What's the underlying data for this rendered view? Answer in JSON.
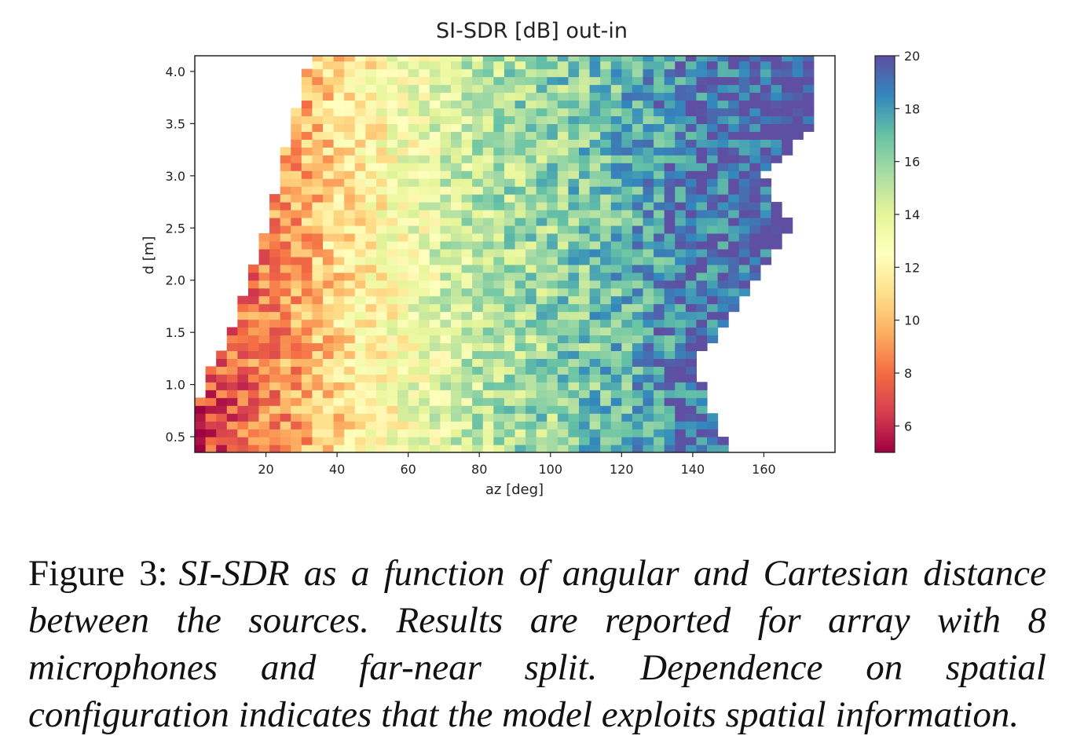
{
  "chart_data": {
    "type": "heatmap",
    "title": "SI-SDR [dB] out-in",
    "xlabel": "az [deg]",
    "ylabel": "d [m]",
    "xlim": [
      0,
      180
    ],
    "ylim": [
      0.35,
      4.15
    ],
    "xticks": [
      20,
      40,
      60,
      80,
      100,
      120,
      140,
      160
    ],
    "yticks": [
      0.5,
      1.0,
      1.5,
      2.0,
      2.5,
      3.0,
      3.5,
      4.0
    ],
    "colorbar": {
      "colormap": "Spectral",
      "range": [
        5,
        20
      ],
      "ticks": [
        6,
        8,
        10,
        12,
        14,
        16,
        18,
        20
      ]
    },
    "grid": false,
    "trend": {
      "description_of_values": "low SI-SDR (~6-9 dB) at small az, rising to ~12 dB near az 50, ~15-16 dB near az 90-110, ~18-20 dB near az 130-170",
      "az_profile": [
        [
          0,
          6.5
        ],
        [
          15,
          8
        ],
        [
          30,
          9.5
        ],
        [
          45,
          11.5
        ],
        [
          60,
          13
        ],
        [
          80,
          15
        ],
        [
          100,
          16
        ],
        [
          120,
          17
        ],
        [
          140,
          19
        ],
        [
          160,
          19.5
        ],
        [
          175,
          20
        ]
      ],
      "data_extent_min_az_by_d": [
        [
          0.4,
          0
        ],
        [
          1.0,
          2
        ],
        [
          1.5,
          10
        ],
        [
          2.0,
          15
        ],
        [
          2.5,
          20
        ],
        [
          3.0,
          24
        ],
        [
          3.5,
          27
        ],
        [
          4.1,
          32
        ]
      ],
      "data_extent_max_az_by_d": [
        [
          0.4,
          150
        ],
        [
          0.8,
          145
        ],
        [
          1.2,
          140
        ],
        [
          1.6,
          150
        ],
        [
          2.0,
          158
        ],
        [
          2.5,
          168
        ],
        [
          3.0,
          160
        ],
        [
          3.5,
          175
        ],
        [
          4.1,
          175
        ]
      ]
    }
  },
  "caption": {
    "lead": "Figure 3:",
    "text": "SI-SDR as a function of angular and Cartesian distance between the sources. Results are reported for array with 8 microphones and far-near split. Dependence on spatial configuration indicates that the model exploits spatial information."
  }
}
